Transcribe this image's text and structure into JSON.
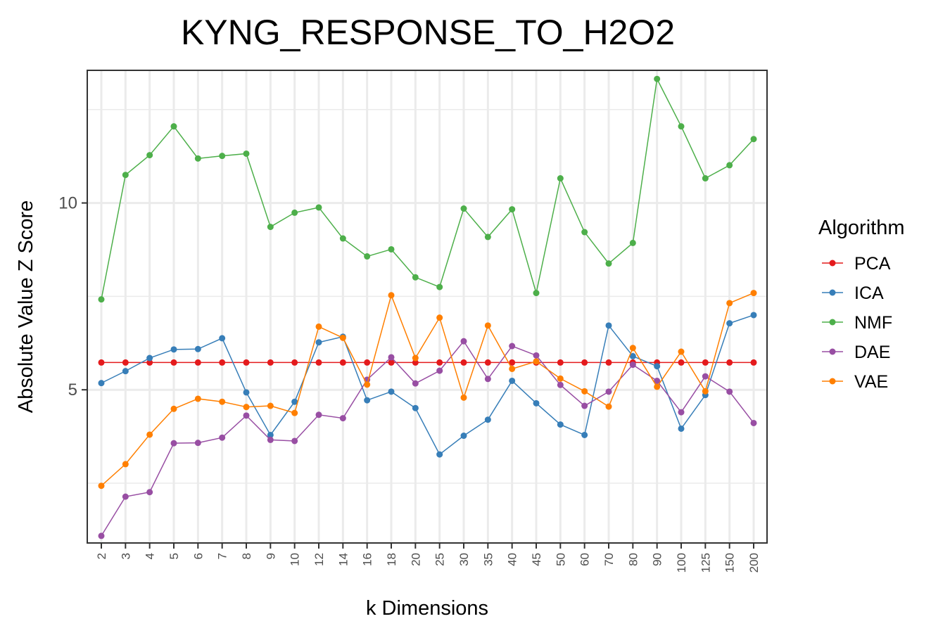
{
  "chart_data": {
    "type": "line",
    "title": "KYNG_RESPONSE_TO_H2O2",
    "xlabel": "k Dimensions",
    "ylabel": "Absolute Value Z Score",
    "categories": [
      "2",
      "3",
      "4",
      "5",
      "6",
      "7",
      "8",
      "9",
      "10",
      "12",
      "14",
      "16",
      "18",
      "20",
      "25",
      "30",
      "35",
      "40",
      "45",
      "50",
      "60",
      "70",
      "80",
      "90",
      "100",
      "125",
      "150",
      "200"
    ],
    "ylim": [
      0.9,
      13.55
    ],
    "yticks": [
      5,
      10
    ],
    "grid": true,
    "legend": {
      "title": "Algorithm",
      "placement": "right"
    },
    "series": [
      {
        "name": "PCA",
        "color": "#E41A1C",
        "values": [
          5.73,
          5.73,
          5.73,
          5.73,
          5.73,
          5.73,
          5.73,
          5.73,
          5.73,
          5.73,
          5.73,
          5.73,
          5.73,
          5.73,
          5.73,
          5.73,
          5.73,
          5.73,
          5.73,
          5.73,
          5.73,
          5.73,
          5.73,
          5.73,
          5.73,
          5.73,
          5.73,
          5.73
        ]
      },
      {
        "name": "ICA",
        "color": "#377EB8",
        "values": [
          5.18,
          5.5,
          5.85,
          6.08,
          6.09,
          6.38,
          4.93,
          3.79,
          4.68,
          6.27,
          6.42,
          4.72,
          4.95,
          4.51,
          3.27,
          3.77,
          4.2,
          5.24,
          4.64,
          4.07,
          3.79,
          6.72,
          5.9,
          5.63,
          3.96,
          4.86,
          6.78,
          7.0
        ]
      },
      {
        "name": "NMF",
        "color": "#4DAF4A",
        "values": [
          7.42,
          10.75,
          11.28,
          12.05,
          11.19,
          11.26,
          11.32,
          9.36,
          9.74,
          9.88,
          9.05,
          8.57,
          8.76,
          8.01,
          7.75,
          9.85,
          9.09,
          9.83,
          7.59,
          10.66,
          9.22,
          8.38,
          8.93,
          13.32,
          12.05,
          10.66,
          11.01,
          11.71
        ]
      },
      {
        "name": "DAE",
        "color": "#984EA3",
        "values": [
          1.09,
          2.14,
          2.26,
          3.57,
          3.58,
          3.72,
          4.31,
          3.66,
          3.63,
          4.33,
          4.24,
          5.27,
          5.87,
          5.17,
          5.51,
          6.3,
          5.29,
          6.17,
          5.92,
          5.13,
          4.57,
          4.95,
          5.67,
          5.24,
          4.4,
          5.36,
          4.95,
          4.11
        ]
      },
      {
        "name": "VAE",
        "color": "#FF7F00",
        "values": [
          2.43,
          3.01,
          3.8,
          4.49,
          4.76,
          4.68,
          4.54,
          4.57,
          4.38,
          6.69,
          6.39,
          5.14,
          7.53,
          5.85,
          6.93,
          4.79,
          6.72,
          5.56,
          5.76,
          5.3,
          4.96,
          4.55,
          6.12,
          5.08,
          6.02,
          4.96,
          7.32,
          7.59
        ]
      }
    ]
  }
}
